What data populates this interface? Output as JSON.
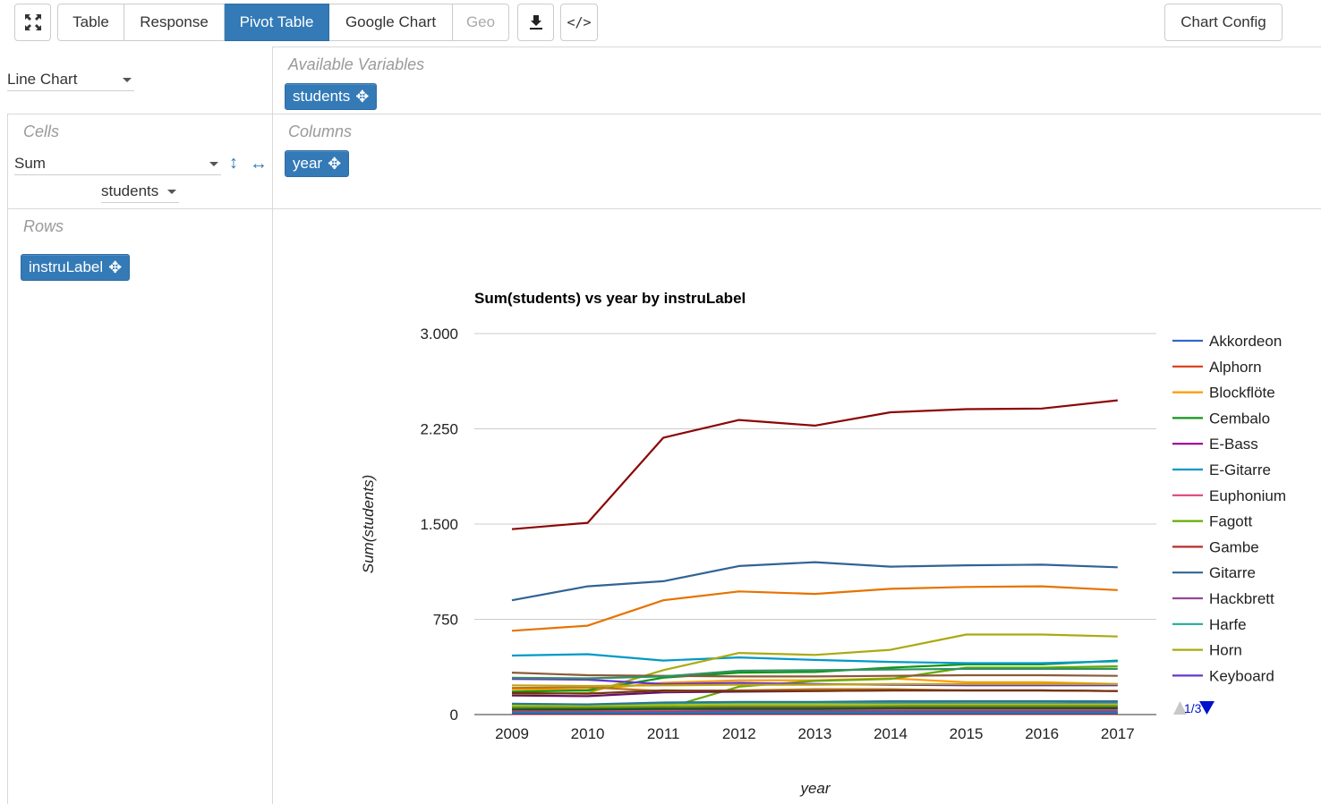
{
  "toolbar": {
    "tabs": [
      {
        "label": "Table",
        "state": "normal"
      },
      {
        "label": "Response",
        "state": "normal"
      },
      {
        "label": "Pivot Table",
        "state": "active"
      },
      {
        "label": "Google Chart",
        "state": "normal"
      },
      {
        "label": "Geo",
        "state": "disabled"
      }
    ],
    "chart_config_label": "Chart Config",
    "code_label": "</>",
    "fullscreen_icon": "fullscreen-icon",
    "download_icon": "download-icon"
  },
  "pivot": {
    "renderer": "Line Chart",
    "available_label": "Available Variables",
    "available": [
      "students"
    ],
    "cells_label": "Cells",
    "aggregator": "Sum",
    "aggregator_attr": "students",
    "columns_label": "Columns",
    "columns": [
      "year"
    ],
    "rows_label": "Rows",
    "rows": [
      "instruLabel"
    ]
  },
  "legend_pager": "1/3",
  "chart_data": {
    "type": "line",
    "title": "Sum(students) vs year by instruLabel",
    "xlabel": "year",
    "ylabel": "Sum(students)",
    "ylim": [
      0,
      3000
    ],
    "yticks": [
      0,
      750,
      1500,
      2250,
      3000
    ],
    "ytick_labels": [
      "0",
      "750",
      "1.500",
      "2.250",
      "3.000"
    ],
    "categories": [
      "2009",
      "2010",
      "2011",
      "2012",
      "2013",
      "2014",
      "2015",
      "2016",
      "2017"
    ],
    "grid": true,
    "legend": "right",
    "series": [
      {
        "name": "Akkordeon",
        "color": "#3366cc",
        "values": [
          60,
          55,
          80,
          85,
          85,
          90,
          85,
          85,
          90
        ],
        "legend": true
      },
      {
        "name": "Alphorn",
        "color": "#dc3912",
        "values": [
          5,
          5,
          5,
          5,
          5,
          5,
          5,
          5,
          5
        ],
        "legend": true
      },
      {
        "name": "Blockflöte",
        "color": "#ff9900",
        "values": [
          200,
          195,
          250,
          270,
          270,
          285,
          255,
          255,
          240
        ],
        "legend": true
      },
      {
        "name": "Cembalo",
        "color": "#109618",
        "values": [
          180,
          190,
          290,
          330,
          335,
          370,
          395,
          395,
          425
        ],
        "legend": true
      },
      {
        "name": "E-Bass",
        "color": "#990099",
        "values": [
          30,
          30,
          45,
          55,
          60,
          65,
          70,
          70,
          70
        ],
        "legend": true
      },
      {
        "name": "E-Gitarre",
        "color": "#0099c6",
        "values": [
          465,
          475,
          425,
          450,
          430,
          415,
          405,
          405,
          420
        ],
        "legend": true
      },
      {
        "name": "Euphonium",
        "color": "#dd4477",
        "values": [
          20,
          20,
          25,
          25,
          25,
          25,
          25,
          25,
          25
        ],
        "legend": true
      },
      {
        "name": "Fagott",
        "color": "#66aa00",
        "values": [
          40,
          40,
          45,
          220,
          265,
          280,
          370,
          370,
          380
        ],
        "legend": true
      },
      {
        "name": "Gambe",
        "color": "#b82e2e",
        "values": [
          10,
          10,
          10,
          10,
          10,
          10,
          10,
          10,
          10
        ],
        "legend": true
      },
      {
        "name": "Gitarre",
        "color": "#316395",
        "values": [
          900,
          1010,
          1050,
          1170,
          1200,
          1165,
          1175,
          1180,
          1160
        ],
        "legend": true
      },
      {
        "name": "Hackbrett",
        "color": "#994499",
        "values": [
          15,
          15,
          15,
          15,
          15,
          15,
          15,
          15,
          15
        ],
        "legend": true
      },
      {
        "name": "Harfe",
        "color": "#22aa99",
        "values": [
          75,
          70,
          90,
          95,
          95,
          100,
          100,
          100,
          105
        ],
        "legend": true
      },
      {
        "name": "Horn",
        "color": "#aaaa11",
        "values": [
          160,
          170,
          350,
          485,
          470,
          510,
          630,
          630,
          615
        ],
        "legend": true
      },
      {
        "name": "Keyboard",
        "color": "#6633cc",
        "values": [
          280,
          275,
          240,
          250,
          240,
          235,
          230,
          230,
          230
        ],
        "legend": true
      },
      {
        "name": "",
        "color": "#8b0707",
        "values": [
          1460,
          1510,
          2180,
          2320,
          2275,
          2380,
          2405,
          2410,
          2475
        ],
        "legend": false
      },
      {
        "name": "",
        "color": "#e67300",
        "values": [
          660,
          700,
          900,
          970,
          950,
          990,
          1005,
          1010,
          980
        ],
        "legend": false
      },
      {
        "name": "",
        "color": "#8b5a3a",
        "values": [
          330,
          310,
          305,
          300,
          300,
          305,
          310,
          310,
          305
        ],
        "legend": false
      },
      {
        "name": "",
        "color": "#651067",
        "values": [
          150,
          145,
          175,
          180,
          185,
          190,
          190,
          190,
          185
        ],
        "legend": false
      },
      {
        "name": "",
        "color": "#329262",
        "values": [
          290,
          285,
          300,
          345,
          350,
          355,
          360,
          360,
          360
        ],
        "legend": false
      },
      {
        "name": "",
        "color": "#5574a6",
        "values": [
          50,
          50,
          55,
          60,
          60,
          60,
          60,
          60,
          60
        ],
        "legend": false
      },
      {
        "name": "",
        "color": "#3b3eac",
        "values": [
          25,
          25,
          25,
          25,
          25,
          25,
          25,
          25,
          25
        ],
        "legend": false
      },
      {
        "name": "",
        "color": "#b77322",
        "values": [
          210,
          215,
          185,
          190,
          200,
          200,
          190,
          190,
          185
        ],
        "legend": false
      },
      {
        "name": "",
        "color": "#16d620",
        "values": [
          35,
          35,
          40,
          40,
          40,
          40,
          40,
          40,
          40
        ],
        "legend": false
      },
      {
        "name": "",
        "color": "#b91383",
        "values": [
          45,
          45,
          50,
          55,
          55,
          55,
          55,
          55,
          55
        ],
        "legend": false
      },
      {
        "name": "",
        "color": "#f4359e",
        "values": [
          30,
          30,
          35,
          40,
          40,
          40,
          40,
          40,
          40
        ],
        "legend": false
      },
      {
        "name": "",
        "color": "#9c5935",
        "values": [
          20,
          20,
          20,
          20,
          20,
          20,
          20,
          20,
          20
        ],
        "legend": false
      },
      {
        "name": "",
        "color": "#a9c413",
        "values": [
          70,
          65,
          75,
          80,
          80,
          80,
          80,
          80,
          80
        ],
        "legend": false
      },
      {
        "name": "",
        "color": "#2a778d",
        "values": [
          85,
          80,
          95,
          100,
          100,
          105,
          105,
          105,
          105
        ],
        "legend": false
      },
      {
        "name": "",
        "color": "#668d1c",
        "values": [
          55,
          55,
          60,
          65,
          65,
          65,
          65,
          65,
          65
        ],
        "legend": false
      },
      {
        "name": "",
        "color": "#bea413",
        "values": [
          230,
          225,
          230,
          235,
          235,
          240,
          240,
          240,
          240
        ],
        "legend": false
      },
      {
        "name": "",
        "color": "#0c5922",
        "values": [
          40,
          40,
          45,
          45,
          45,
          50,
          50,
          50,
          50
        ],
        "legend": false
      },
      {
        "name": "",
        "color": "#743411",
        "values": [
          170,
          165,
          190,
          185,
          185,
          190,
          190,
          190,
          185
        ],
        "legend": false
      },
      {
        "name": "",
        "color": "#5a2e82",
        "values": [
          10,
          10,
          10,
          10,
          10,
          10,
          10,
          10,
          10
        ],
        "legend": false
      },
      {
        "name": "",
        "color": "#1f77b4",
        "values": [
          15,
          15,
          15,
          15,
          15,
          15,
          15,
          15,
          15
        ],
        "legend": false
      }
    ]
  }
}
